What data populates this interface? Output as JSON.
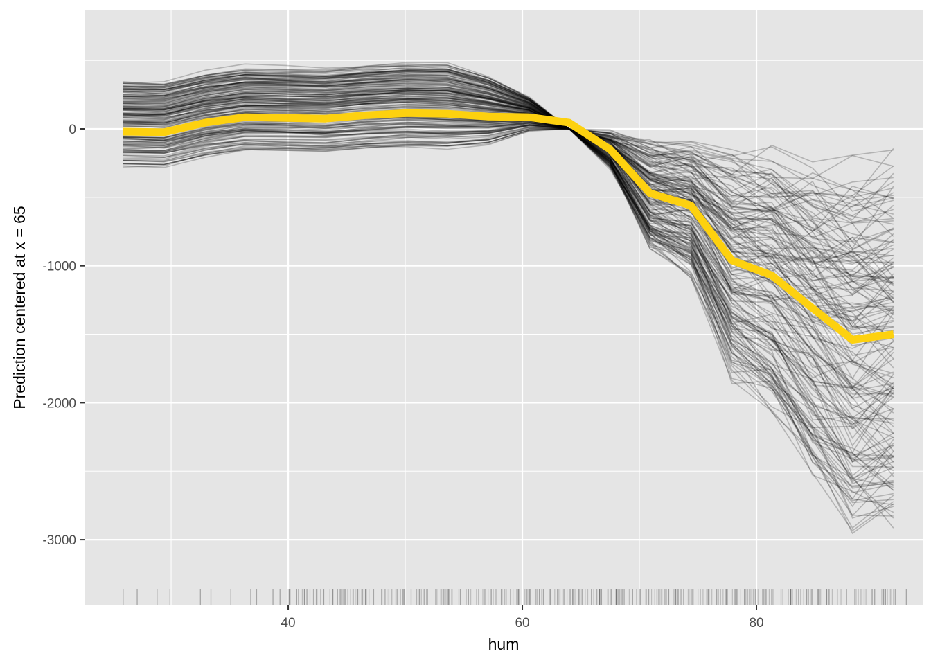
{
  "chart_data": {
    "type": "line",
    "title": "",
    "xlabel": "hum",
    "ylabel": "Prediction centered at x = 65",
    "xlim": [
      22.6,
      94.2
    ],
    "ylim": [
      -3480,
      870
    ],
    "x_ticks": [
      40,
      60,
      80
    ],
    "x_tick_labels": [
      "40",
      "60",
      "80"
    ],
    "y_ticks": [
      0,
      -1000,
      -2000,
      -3000
    ],
    "y_tick_labels": [
      "0",
      "-1000",
      "-2000",
      "-3000"
    ],
    "grid": true,
    "background": "#e5e5e5",
    "grid_major_color": "#ffffff",
    "ice_line_color": "#000000",
    "ice_line_opacity": 0.22,
    "x": [
      25.9,
      29.4,
      32.9,
      36.3,
      39.8,
      43.2,
      46.7,
      50.2,
      53.6,
      57.1,
      60.6,
      64.0,
      67.5,
      70.9,
      74.4,
      77.9,
      81.3,
      84.8,
      88.2,
      91.7
    ],
    "series": [
      {
        "role": "average",
        "values": [
          -20,
          -25,
          45,
          85,
          80,
          75,
          100,
          115,
          110,
          90,
          85,
          45,
          -150,
          -470,
          -560,
          -960,
          -1070,
          -1310,
          -1540,
          -1500
        ],
        "color": "#fdd10f"
      }
    ],
    "rug_x": [
      25.9,
      27.1,
      28.8,
      29.9,
      32.5,
      33.4,
      35.1,
      36.8,
      37.3,
      38.7,
      39.3,
      40.1,
      40.9,
      41.6,
      42.4,
      43.0,
      43.8,
      44.6,
      45.1,
      45.9,
      46.6,
      47.3,
      48.0,
      48.6,
      49.2,
      49.9,
      50.5,
      51.2,
      51.9,
      52.6,
      53.3,
      54.0,
      54.7,
      55.4,
      56.1,
      56.8,
      57.5,
      58.2,
      59.0,
      59.7,
      60.4,
      61.1,
      61.8,
      62.4,
      63.0,
      63.6,
      64.3,
      65.1,
      65.9,
      66.6,
      67.3,
      68.0,
      68.7,
      69.4,
      70.1,
      70.8,
      71.5,
      72.3,
      73.1,
      73.8,
      74.5,
      75.2,
      75.9,
      76.6,
      77.4,
      78.3,
      79.0,
      79.8,
      80.6,
      81.3,
      82.1,
      82.9,
      83.6,
      84.4,
      85.2,
      86.0,
      86.9,
      87.7,
      88.4,
      89.2,
      90.1,
      91.0,
      92.8
    ]
  }
}
